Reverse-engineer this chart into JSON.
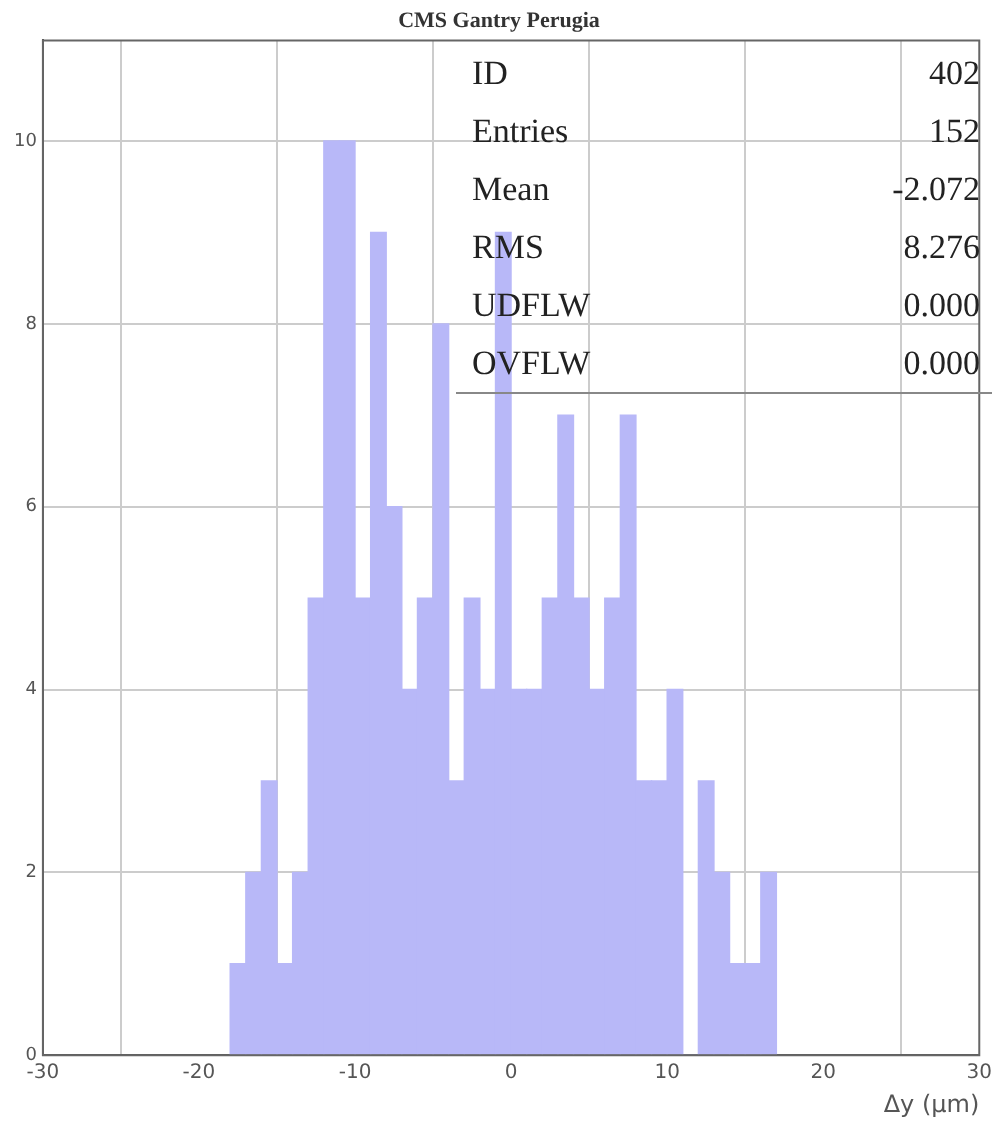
{
  "chart_data": {
    "type": "histogram",
    "title": "CMS Gantry Perugia",
    "xlabel": "Δy (μm)",
    "bins": [
      -18,
      -17,
      -16,
      -15,
      -14,
      -13,
      -12,
      -11,
      -10,
      -9,
      -8,
      -7,
      -6,
      -5,
      -4,
      -3,
      -2,
      -1,
      0,
      1,
      2,
      3,
      4,
      5,
      6,
      7,
      8,
      9,
      10,
      11,
      12,
      13,
      14,
      15,
      16,
      17
    ],
    "values": [
      1,
      2,
      3,
      1,
      2,
      5,
      10,
      10,
      5,
      9,
      6,
      4,
      5,
      8,
      3,
      5,
      4,
      9,
      4,
      4,
      5,
      7,
      5,
      4,
      5,
      7,
      3,
      3,
      4,
      0,
      3,
      2,
      1,
      1,
      2
    ],
    "color": "#b8b8f8",
    "xlim": [
      -30,
      30
    ],
    "xticks": [
      -30,
      -20,
      -10,
      0,
      10,
      20,
      30
    ],
    "ylim": [
      0,
      11.1
    ],
    "yticks": [
      0,
      2,
      4,
      6,
      8,
      10
    ],
    "grid": true,
    "annotations": [
      "ID",
      "402",
      "Entries",
      "152",
      "Mean",
      "-2.072",
      "RMS",
      "8.276",
      "UDFLW",
      "0.000",
      "OVFLW",
      "0.000"
    ]
  }
}
